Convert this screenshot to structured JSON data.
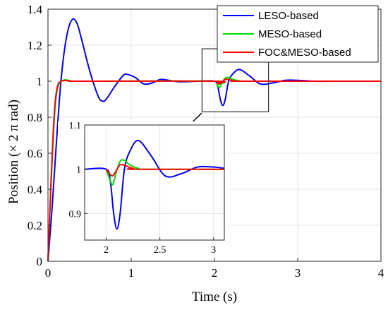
{
  "chart_data": {
    "type": "line",
    "xlabel": "Time (s)",
    "ylabel": "Position (× 2 π rad)",
    "xlim": [
      0,
      4
    ],
    "ylim": [
      0,
      1.4
    ],
    "x_ticks": [
      "0",
      "1",
      "2",
      "3",
      "4"
    ],
    "y_ticks": [
      "0",
      "0.2",
      "0.4",
      "0.6",
      "0.8",
      "1",
      "1.2",
      "1.4"
    ],
    "grid": true,
    "legend_position": "top-right",
    "series": [
      {
        "name": "LESO-based",
        "color": "#0000ff",
        "x": [
          0,
          0.05,
          0.1,
          0.15,
          0.2,
          0.25,
          0.3,
          0.35,
          0.4,
          0.5,
          0.6,
          0.65,
          0.7,
          0.8,
          0.9,
          0.95,
          1.05,
          1.15,
          1.25,
          1.35,
          1.45,
          1.55,
          1.65,
          1.8,
          2.0,
          2.04,
          2.07,
          2.1,
          2.13,
          2.17,
          2.22,
          2.3,
          2.42,
          2.55,
          2.7,
          2.85,
          3.0,
          3.2,
          3.5,
          4.0
        ],
        "y": [
          0,
          0.3,
          0.65,
          0.97,
          1.18,
          1.3,
          1.345,
          1.32,
          1.24,
          1.06,
          0.92,
          0.89,
          0.9,
          0.97,
          1.03,
          1.038,
          1.02,
          0.985,
          0.99,
          1.01,
          1.005,
          0.998,
          0.997,
          1.0,
          1.0,
          0.97,
          0.9,
          0.865,
          0.9,
          1.0,
          1.04,
          1.065,
          1.03,
          0.985,
          0.99,
          1.005,
          1.005,
          1.0,
          1.0,
          1.0
        ]
      },
      {
        "name": "MESO-based",
        "color": "#00dd00",
        "x": [
          0,
          0.03,
          0.06,
          0.09,
          0.12,
          0.15,
          0.18,
          0.21,
          0.25,
          0.3,
          0.4,
          2.0,
          2.03,
          2.06,
          2.09,
          2.13,
          2.17,
          2.22,
          2.3,
          2.4,
          4.0
        ],
        "y": [
          0,
          0.35,
          0.66,
          0.88,
          0.97,
          0.995,
          1.005,
          1.008,
          1.004,
          1.0,
          1.0,
          1.0,
          0.98,
          0.965,
          0.99,
          1.018,
          1.02,
          1.01,
          1.002,
          1.0,
          1.0
        ]
      },
      {
        "name": "FOC&MESO-based",
        "color": "#ff0000",
        "x": [
          0,
          0.03,
          0.06,
          0.09,
          0.12,
          0.15,
          0.18,
          0.21,
          0.25,
          0.3,
          0.4,
          2.0,
          2.03,
          2.06,
          2.09,
          2.13,
          2.18,
          2.25,
          2.35,
          4.0
        ],
        "y": [
          0,
          0.37,
          0.69,
          0.9,
          0.98,
          0.998,
          1.003,
          1.004,
          1.002,
          1.0,
          1.0,
          1.0,
          0.99,
          0.985,
          0.995,
          1.01,
          1.008,
          1.002,
          1.0,
          1.0
        ]
      }
    ],
    "inset": {
      "xlim": [
        1.8,
        3.1
      ],
      "ylim": [
        0.84,
        1.1
      ],
      "x_ticks": [
        "2",
        "2.5",
        "3"
      ],
      "y_ticks": [
        "0.9",
        "1",
        "1.1"
      ]
    }
  }
}
